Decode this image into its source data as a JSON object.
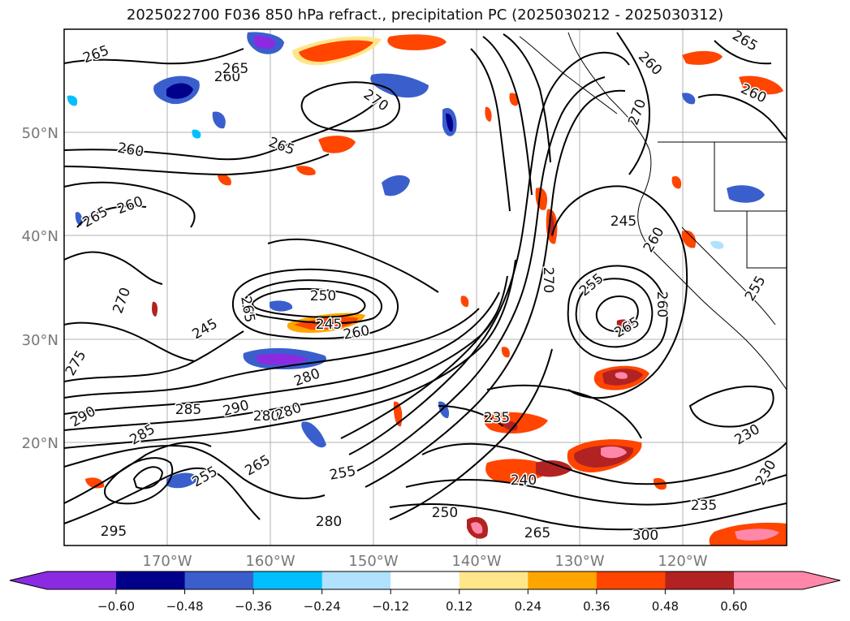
{
  "title": "2025022700 F036 850 hPa refract., precipitation PC (2025030212 - 2025030312)",
  "lat_labels": [
    "50°N",
    "40°N",
    "30°N",
    "20°N"
  ],
  "lon_labels": [
    "170°W",
    "160°W",
    "150°W",
    "140°W",
    "130°W",
    "120°W"
  ],
  "colorbar": {
    "colors": [
      "#8a2be2",
      "#00008b",
      "#3a5fcd",
      "#00bfff",
      "#b0e2ff",
      "#ffffff",
      "#ffe68a",
      "#ffa500",
      "#ff4500",
      "#b22222",
      "#ff88aa"
    ],
    "tick_labels": [
      "−0.60",
      "−0.48",
      "−0.36",
      "−0.24",
      "−0.12",
      "0.12",
      "0.24",
      "0.36",
      "0.48",
      "0.60"
    ]
  },
  "contour_labels": [
    {
      "text": "265"
    },
    {
      "text": "260"
    },
    {
      "text": "270"
    },
    {
      "text": "265"
    },
    {
      "text": "260"
    },
    {
      "text": "265"
    },
    {
      "text": "260"
    },
    {
      "text": "270"
    },
    {
      "text": "275"
    },
    {
      "text": "250"
    },
    {
      "text": "245"
    },
    {
      "text": "260"
    },
    {
      "text": "265"
    },
    {
      "text": "255"
    },
    {
      "text": "290"
    },
    {
      "text": "285"
    },
    {
      "text": "290"
    },
    {
      "text": "280"
    },
    {
      "text": "285"
    },
    {
      "text": "280"
    },
    {
      "text": "255"
    },
    {
      "text": "265"
    },
    {
      "text": "270"
    },
    {
      "text": "245"
    },
    {
      "text": "255"
    },
    {
      "text": "260"
    },
    {
      "text": "265"
    },
    {
      "text": "235"
    },
    {
      "text": "240"
    },
    {
      "text": "250"
    },
    {
      "text": "230"
    },
    {
      "text": "230"
    },
    {
      "text": "235"
    },
    {
      "text": "280"
    },
    {
      "text": "295"
    },
    {
      "text": "255"
    },
    {
      "text": "265"
    },
    {
      "text": "260"
    },
    {
      "text": "270"
    },
    {
      "text": "245"
    },
    {
      "text": "265"
    },
    {
      "text": "260"
    },
    {
      "text": "260"
    },
    {
      "text": "265"
    },
    {
      "text": "280"
    },
    {
      "text": "300"
    }
  ]
}
